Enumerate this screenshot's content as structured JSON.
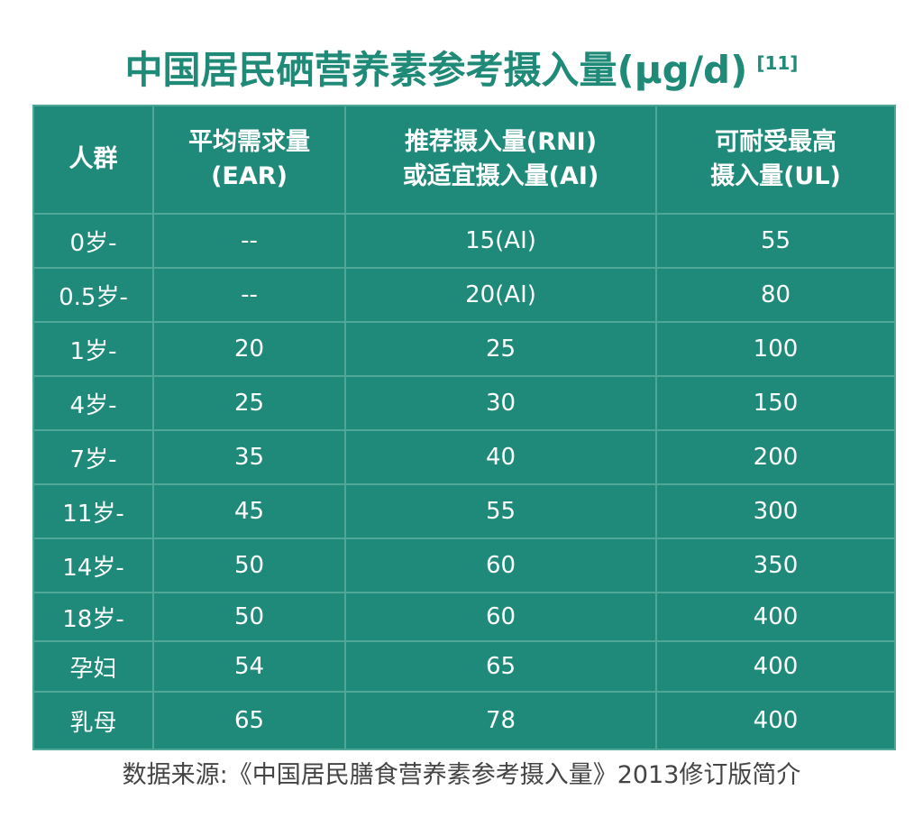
{
  "title": "中国居民硒营养素参考摄入量(μg/d)",
  "title_ref": "[11]",
  "header": {
    "col1": "人群",
    "col2_line1": "平均需求量",
    "col2_line2": "(EAR)",
    "col3_line1": "推荐摄入量(RNI)",
    "col3_line2": "或适宜摄入量(AI)",
    "col4_line1": "可耐受最高",
    "col4_line2": "摄入量(UL)"
  },
  "rows": [
    {
      "group": "0岁-",
      "ear": "--",
      "rni": "15(AI)",
      "ul": "55"
    },
    {
      "group": "0.5岁-",
      "ear": "--",
      "rni": "20(AI)",
      "ul": "80"
    },
    {
      "group": "1岁-",
      "ear": "20",
      "rni": "25",
      "ul": "100"
    },
    {
      "group": "4岁-",
      "ear": "25",
      "rni": "30",
      "ul": "150"
    },
    {
      "group": "7岁-",
      "ear": "35",
      "rni": "40",
      "ul": "200"
    },
    {
      "group": "11岁-",
      "ear": "45",
      "rni": "55",
      "ul": "300"
    },
    {
      "group": "14岁-",
      "ear": "50",
      "rni": "60",
      "ul": "350"
    },
    {
      "group": "18岁-",
      "ear": "50",
      "rni": "60",
      "ul": "400"
    },
    {
      "group": "孕妇",
      "ear": "54",
      "rni": "65",
      "ul": "400"
    },
    {
      "group": "乳母",
      "ear": "65",
      "rni": "78",
      "ul": "400"
    }
  ],
  "source": "数据来源:《中国居民膳食营养素参考摄入量》2013修订版简介",
  "colors": {
    "title": "#1f8a77",
    "table_bg": "#1f8a7a",
    "grid": "#4fa797",
    "cell_text": "#ffffff",
    "source_text": "#444444"
  }
}
